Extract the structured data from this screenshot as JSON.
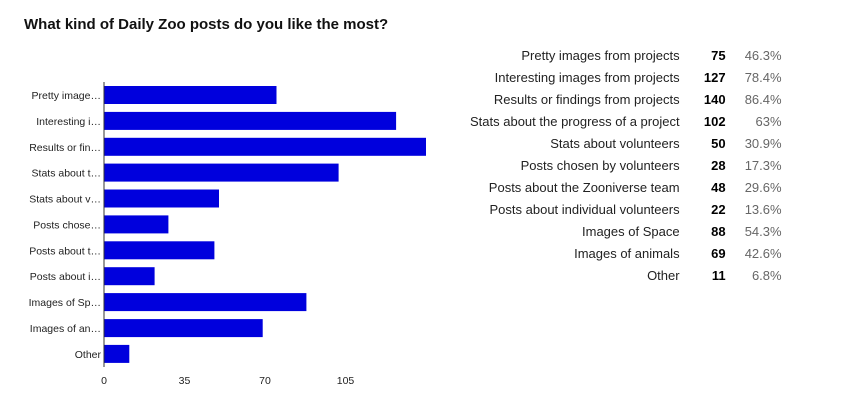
{
  "title": "What kind of Daily Zoo posts do you like the most?",
  "colors": {
    "bar": "#0000dd",
    "axis": "#333333",
    "text": "#222222",
    "muted": "#666666"
  },
  "chart_data": {
    "type": "bar",
    "orientation": "horizontal",
    "title": "What kind of Daily Zoo posts do you like the most?",
    "categories": [
      "Pretty images from projects",
      "Interesting images from projects",
      "Results or findings from projects",
      "Stats about the progress of a project",
      "Stats about volunteers",
      "Posts chosen by volunteers",
      "Posts about the Zooniverse team",
      "Posts about individual volunteers",
      "Images of Space",
      "Images of animals",
      "Other"
    ],
    "category_labels": [
      "Pretty image…",
      "Interesting i…",
      "Results or fin…",
      "Stats about t…",
      "Stats about v…",
      "Posts chose…",
      "Posts about t…",
      "Posts about i…",
      "Images of Sp…",
      "Images of an…",
      "Other"
    ],
    "values": [
      75,
      127,
      140,
      102,
      50,
      28,
      48,
      22,
      88,
      69,
      11
    ],
    "percentages": [
      "46.3%",
      "78.4%",
      "86.4%",
      "63%",
      "30.9%",
      "17.3%",
      "29.6%",
      "13.6%",
      "54.3%",
      "42.6%",
      "6.8%"
    ],
    "xticks": [
      "0",
      "35",
      "70",
      "105"
    ],
    "xlim": [
      0,
      140
    ],
    "grid": false,
    "legend": "none"
  }
}
